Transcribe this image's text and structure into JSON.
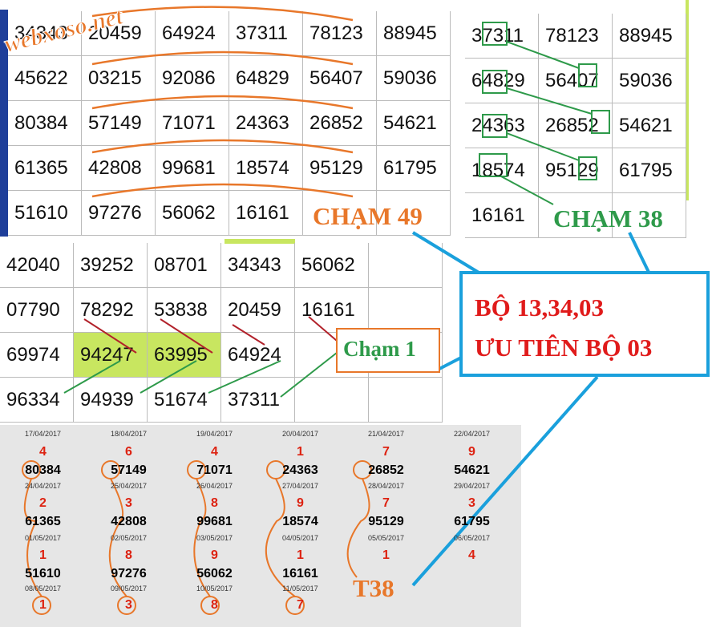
{
  "watermark": "webxoso.net",
  "table_a": {
    "rows": [
      [
        "34343",
        "20459",
        "64924",
        "37311",
        "78123",
        "88945"
      ],
      [
        "45622",
        "03215",
        "92086",
        "64829",
        "56407",
        "59036"
      ],
      [
        "80384",
        "57149",
        "71071",
        "24363",
        "26852",
        "54621"
      ],
      [
        "61365",
        "42808",
        "99681",
        "18574",
        "95129",
        "61795"
      ],
      [
        "51610",
        "97276",
        "56062",
        "16161"
      ]
    ]
  },
  "label_cham_49": "CHẠM 49",
  "table_b": {
    "rows": [
      [
        "37311",
        "78123",
        "88945"
      ],
      [
        "64829",
        "56407",
        "59036"
      ],
      [
        "24363",
        "26852",
        "54621"
      ],
      [
        "18574",
        "95129",
        "61795"
      ],
      [
        "16161"
      ]
    ]
  },
  "label_cham_38": "CHẠM 38",
  "table_c": {
    "rows": [
      [
        "42040",
        "39252",
        "08701",
        "34343",
        "56062"
      ],
      [
        "07790",
        "78292",
        "53838",
        "20459",
        "16161"
      ],
      [
        "69974",
        "94247",
        "63995",
        "64924"
      ],
      [
        "96334",
        "94939",
        "51674",
        "37311"
      ]
    ]
  },
  "label_cham_1": "Chạm 1",
  "callout": {
    "line1": "BỘ 13,34,03",
    "line2": "ƯU TIÊN BỘ 03"
  },
  "history": {
    "weeks": [
      {
        "dates": [
          "17/04/2017",
          "18/04/2017",
          "19/04/2017",
          "20/04/2017",
          "21/04/2017",
          "22/04/2017"
        ],
        "digits": [
          "4",
          "6",
          "4",
          "1",
          "7",
          "9"
        ],
        "numbers": [
          "80384",
          "57149",
          "71071",
          "24363",
          "26852",
          "54621"
        ]
      },
      {
        "dates": [
          "24/04/2017",
          "25/04/2017",
          "26/04/2017",
          "27/04/2017",
          "28/04/2017",
          "29/04/2017"
        ],
        "digits": [
          "2",
          "3",
          "8",
          "9",
          "7",
          "3"
        ],
        "numbers": [
          "61365",
          "42808",
          "99681",
          "18574",
          "95129",
          "61795"
        ]
      },
      {
        "dates": [
          "01/05/2017",
          "02/05/2017",
          "03/05/2017",
          "04/05/2017",
          "05/05/2017",
          "06/05/2017"
        ],
        "digits": [
          "1",
          "8",
          "9",
          "1",
          "1",
          "4"
        ],
        "numbers": [
          "51610",
          "97276",
          "56062",
          "16161"
        ]
      },
      {
        "dates": [
          "08/05/2017",
          "09/05/2017",
          "10/05/2017",
          "11/05/2017"
        ],
        "digits": [
          "1",
          "3",
          "8",
          "7"
        ]
      }
    ]
  },
  "label_t38": "T38"
}
